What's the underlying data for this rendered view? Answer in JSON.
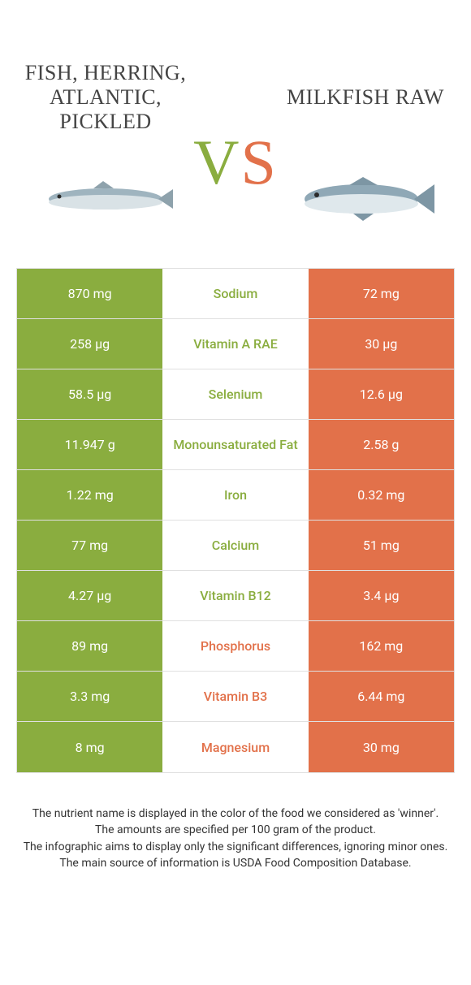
{
  "colors": {
    "green": "#8aad3f",
    "orange": "#e2714a",
    "row_border": "#e0e0e0",
    "bg": "#ffffff"
  },
  "header": {
    "left_title": "FISH, HERRING, ATLANTIC, PICKLED",
    "right_title": "MILKFISH RAW",
    "vs_v": "V",
    "vs_s": "S"
  },
  "rows": [
    {
      "nutrient": "Sodium",
      "left": "870 mg",
      "right": "72 mg",
      "winner": "left"
    },
    {
      "nutrient": "Vitamin A RAE",
      "left": "258 µg",
      "right": "30 µg",
      "winner": "left"
    },
    {
      "nutrient": "Selenium",
      "left": "58.5 µg",
      "right": "12.6 µg",
      "winner": "left"
    },
    {
      "nutrient": "Monounsaturated Fat",
      "left": "11.947 g",
      "right": "2.58 g",
      "winner": "left"
    },
    {
      "nutrient": "Iron",
      "left": "1.22 mg",
      "right": "0.32 mg",
      "winner": "left"
    },
    {
      "nutrient": "Calcium",
      "left": "77 mg",
      "right": "51 mg",
      "winner": "left"
    },
    {
      "nutrient": "Vitamin B12",
      "left": "4.27 µg",
      "right": "3.4 µg",
      "winner": "left"
    },
    {
      "nutrient": "Phosphorus",
      "left": "89 mg",
      "right": "162 mg",
      "winner": "right"
    },
    {
      "nutrient": "Vitamin B3",
      "left": "3.3 mg",
      "right": "6.44 mg",
      "winner": "right"
    },
    {
      "nutrient": "Magnesium",
      "left": "8 mg",
      "right": "30 mg",
      "winner": "right"
    }
  ],
  "footnotes": [
    "The nutrient name is displayed in the color of the food we considered as 'winner'.",
    "The amounts are specified per 100 gram of the product.",
    "The infographic aims to display only the significant differences, ignoring minor ones.",
    "The main source of information is USDA Food Composition Database."
  ]
}
